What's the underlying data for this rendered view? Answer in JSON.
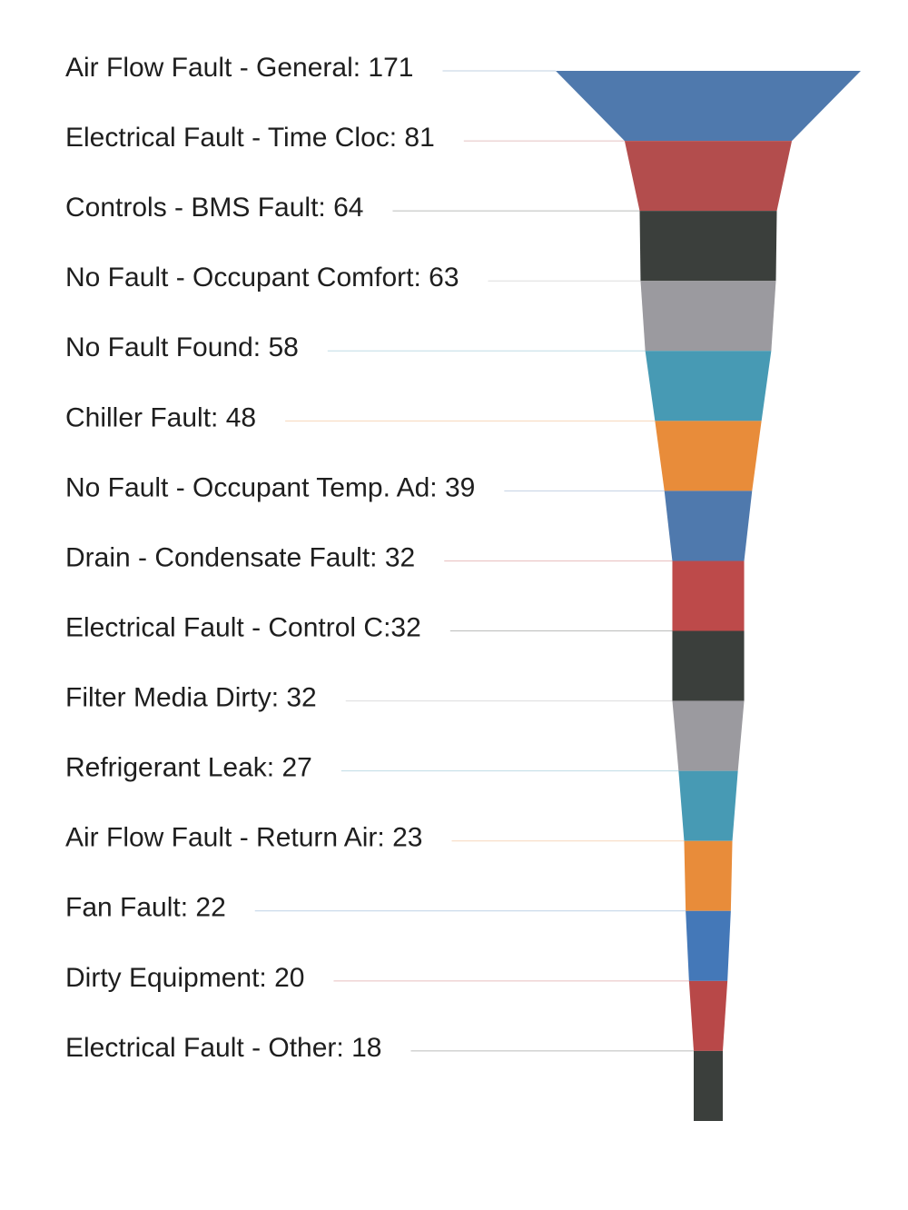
{
  "chart_data": {
    "type": "funnel",
    "title": "",
    "categories": [
      "Air Flow Fault - General",
      "Electrical Fault - Time Cloc",
      "Controls - BMS Fault",
      "No Fault - Occupant Comfort",
      "No Fault Found",
      "Chiller Fault",
      "No Fault - Occupant Temp. Ad",
      "Drain - Condensate Fault",
      "Electrical Fault - Control C",
      "Filter Media Dirty",
      "Refrigerant Leak",
      "Air Flow Fault - Return Air",
      "Fan Fault",
      "Dirty Equipment",
      "Electrical Fault - Other"
    ],
    "values": [
      171,
      81,
      64,
      63,
      58,
      48,
      39,
      32,
      32,
      32,
      27,
      23,
      22,
      20,
      18
    ],
    "labels": [
      "Air Flow Fault - General: 171",
      "Electrical Fault - Time Cloc: 81",
      "Controls - BMS Fault: 64",
      "No Fault - Occupant Comfort: 63",
      "No Fault Found: 58",
      "Chiller Fault: 48",
      "No Fault - Occupant Temp. Ad: 39",
      "Drain - Condensate Fault: 32",
      "Electrical Fault - Control C:32",
      "Filter Media Dirty: 32",
      "Refrigerant Leak: 27",
      "Air Flow Fault - Return Air: 23",
      "Fan Fault: 22",
      "Dirty Equipment: 20",
      "Electrical Fault - Other: 18"
    ],
    "colors": [
      "#4f79ad",
      "#b34d4d",
      "#3b3f3c",
      "#9b9a9f",
      "#479ab4",
      "#e88c3a",
      "#4f79ad",
      "#bd4a4a",
      "#3b3f3c",
      "#9b9a9f",
      "#479ab4",
      "#e88c3a",
      "#4478b8",
      "#b84848",
      "#3b3f3c"
    ],
    "legend": "none",
    "grid": false
  }
}
